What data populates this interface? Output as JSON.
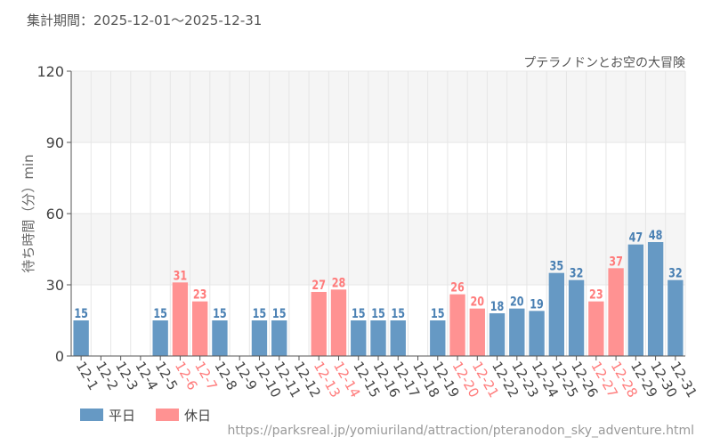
{
  "header": {
    "period_label": "集計期間：2025-12-01〜2025-12-31"
  },
  "footer": {
    "source_url": "https://parksreal.jp/yomiuriland/attraction/pteranodon_sky_adventure.html"
  },
  "colors": {
    "weekday": "#6699c4",
    "holiday": "#ff9292",
    "weekday_text": "#4a80b3",
    "holiday_text": "#ff7b7b"
  },
  "chart_data": {
    "type": "bar",
    "title": "プテラノドンとお空の大冒険",
    "ylabel": "待ち時間（分）min",
    "xlabel": "",
    "ylim": [
      0,
      120
    ],
    "yticks": [
      0,
      30,
      60,
      90,
      120
    ],
    "grid": true,
    "legend_position": "bottom-left",
    "legend": [
      {
        "name": "平日",
        "key": "weekday"
      },
      {
        "name": "休日",
        "key": "holiday"
      }
    ],
    "categories": [
      "12-1",
      "12-2",
      "12-3",
      "12-4",
      "12-5",
      "12-6",
      "12-7",
      "12-8",
      "12-9",
      "12-10",
      "12-11",
      "12-12",
      "12-13",
      "12-14",
      "12-15",
      "12-16",
      "12-17",
      "12-18",
      "12-19",
      "12-20",
      "12-21",
      "12-22",
      "12-23",
      "12-24",
      "12-25",
      "12-26",
      "12-27",
      "12-28",
      "12-29",
      "12-30",
      "12-31"
    ],
    "values": [
      15,
      null,
      null,
      null,
      15,
      31,
      23,
      15,
      null,
      15,
      15,
      null,
      27,
      28,
      15,
      15,
      15,
      null,
      15,
      26,
      20,
      18,
      20,
      19,
      35,
      32,
      23,
      37,
      47,
      48,
      32
    ],
    "day_type": [
      "weekday",
      "weekday",
      "weekday",
      "weekday",
      "weekday",
      "holiday",
      "holiday",
      "weekday",
      "weekday",
      "weekday",
      "weekday",
      "weekday",
      "holiday",
      "holiday",
      "weekday",
      "weekday",
      "weekday",
      "weekday",
      "weekday",
      "holiday",
      "holiday",
      "weekday",
      "weekday",
      "weekday",
      "weekday",
      "weekday",
      "holiday",
      "holiday",
      "weekday",
      "weekday",
      "weekday"
    ]
  }
}
